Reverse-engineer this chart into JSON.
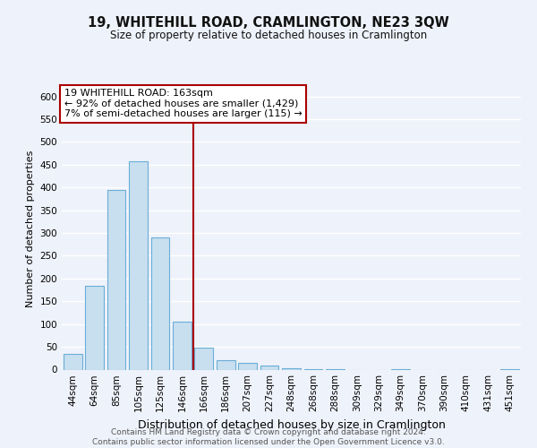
{
  "title": "19, WHITEHILL ROAD, CRAMLINGTON, NE23 3QW",
  "subtitle": "Size of property relative to detached houses in Cramlington",
  "xlabel": "Distribution of detached houses by size in Cramlington",
  "ylabel": "Number of detached properties",
  "bin_labels": [
    "44sqm",
    "64sqm",
    "85sqm",
    "105sqm",
    "125sqm",
    "146sqm",
    "166sqm",
    "186sqm",
    "207sqm",
    "227sqm",
    "248sqm",
    "268sqm",
    "288sqm",
    "309sqm",
    "329sqm",
    "349sqm",
    "370sqm",
    "390sqm",
    "410sqm",
    "431sqm",
    "451sqm"
  ],
  "bar_heights": [
    35,
    185,
    395,
    457,
    290,
    105,
    48,
    20,
    15,
    8,
    2,
    1,
    1,
    0,
    0,
    1,
    0,
    0,
    0,
    0,
    1
  ],
  "bar_color": "#c8dff0",
  "bar_edge_color": "#6aaed6",
  "vline_x_idx": 6,
  "vline_color": "#aa0000",
  "annotation_line1": "19 WHITEHILL ROAD: 163sqm",
  "annotation_line2": "← 92% of detached houses are smaller (1,429)",
  "annotation_line3": "7% of semi-detached houses are larger (115) →",
  "annotation_box_color": "#ffffff",
  "annotation_box_edge_color": "#aa0000",
  "ylim": [
    0,
    620
  ],
  "yticks": [
    0,
    50,
    100,
    150,
    200,
    250,
    300,
    350,
    400,
    450,
    500,
    550,
    600
  ],
  "footer_line1": "Contains HM Land Registry data © Crown copyright and database right 2024.",
  "footer_line2": "Contains public sector information licensed under the Open Government Licence v3.0.",
  "background_color": "#eef2fa",
  "plot_bg_color": "#eef2fa",
  "grid_color": "#ffffff",
  "title_fontsize": 10.5,
  "subtitle_fontsize": 8.5,
  "ylabel_fontsize": 8,
  "xlabel_fontsize": 9,
  "tick_fontsize": 7.5,
  "annotation_fontsize": 8,
  "footer_fontsize": 6.5
}
